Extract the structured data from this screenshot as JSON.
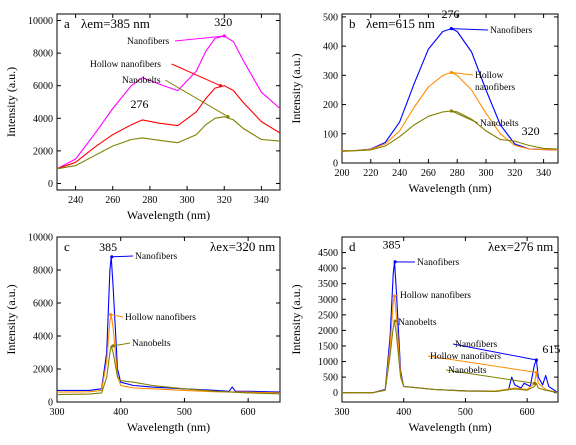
{
  "chart_data": [
    {
      "type": "line",
      "panel_label": "a",
      "condition": "λem=385 nm",
      "xlabel": "Wavelength (nm)",
      "ylabel": "Intensity (a.u.)",
      "xlim": [
        230,
        350
      ],
      "ylim": [
        -400,
        10400
      ],
      "xticks": [
        240,
        260,
        280,
        300,
        320,
        340
      ],
      "yticks": [
        0,
        2000,
        4000,
        6000,
        8000,
        10000
      ],
      "peak_labels": [
        {
          "text": "276",
          "x": 276,
          "y": 4400
        },
        {
          "text": "320",
          "x": 320,
          "y": 9300
        }
      ],
      "series": [
        {
          "name": "Nanofibers",
          "color": "#ff00ff",
          "x": [
            230,
            240,
            250,
            260,
            270,
            276,
            285,
            295,
            305,
            310,
            315,
            320,
            325,
            330,
            340,
            350
          ],
          "y": [
            900,
            1500,
            3000,
            4600,
            6000,
            6500,
            6100,
            5700,
            6900,
            8100,
            8900,
            9050,
            8700,
            7600,
            5600,
            4600
          ]
        },
        {
          "name": "Hollow nanofibers",
          "color": "#ff0000",
          "x": [
            230,
            240,
            250,
            260,
            270,
            276,
            285,
            295,
            305,
            310,
            315,
            320,
            325,
            330,
            340,
            350
          ],
          "y": [
            900,
            1300,
            2200,
            3000,
            3600,
            3900,
            3700,
            3550,
            4400,
            5200,
            5850,
            6000,
            5700,
            5000,
            3800,
            3100
          ]
        },
        {
          "name": "Nanobelts",
          "color": "#808000",
          "x": [
            230,
            240,
            250,
            260,
            270,
            276,
            285,
            295,
            305,
            310,
            315,
            320,
            325,
            330,
            340,
            350
          ],
          "y": [
            900,
            1100,
            1700,
            2300,
            2700,
            2800,
            2650,
            2500,
            3000,
            3600,
            4000,
            4100,
            3900,
            3400,
            2700,
            2600
          ]
        }
      ],
      "annotations": [
        {
          "text": "Nanofibers",
          "series": "Nanofibers",
          "x": 320,
          "y": 9050
        },
        {
          "text": "Hollow nanofibers",
          "series": "Hollow nanofibers",
          "x": 318,
          "y": 6000
        },
        {
          "text": "Nanobelts",
          "series": "Nanobelts",
          "x": 322,
          "y": 4100
        }
      ]
    },
    {
      "type": "line",
      "panel_label": "b",
      "condition": "λem=615 nm",
      "xlabel": "Wavelength (nm)",
      "ylabel": "Intensity (a.u.)",
      "xlim": [
        200,
        350
      ],
      "ylim": [
        0,
        510
      ],
      "xticks": [
        200,
        220,
        240,
        260,
        280,
        300,
        320,
        340
      ],
      "yticks": [
        0,
        100,
        200,
        300,
        400,
        500
      ],
      "peak_labels": [
        {
          "text": "276",
          "x": 276,
          "y": 480
        },
        {
          "text": "320",
          "x": 322,
          "y": 95
        }
      ],
      "series": [
        {
          "name": "Nanofibers",
          "color": "#0000ff",
          "x": [
            200,
            210,
            220,
            230,
            240,
            250,
            260,
            270,
            276,
            280,
            290,
            300,
            310,
            320,
            330,
            340,
            350
          ],
          "y": [
            42,
            43,
            48,
            70,
            140,
            270,
            390,
            450,
            460,
            450,
            380,
            250,
            130,
            65,
            48,
            46,
            45
          ]
        },
        {
          "name": "Hollow nanofibers",
          "color": "#ff8c00",
          "x": [
            200,
            210,
            220,
            230,
            240,
            250,
            260,
            270,
            276,
            280,
            290,
            300,
            310,
            320,
            330,
            340,
            350
          ],
          "y": [
            42,
            43,
            47,
            65,
            110,
            190,
            260,
            300,
            310,
            300,
            250,
            170,
            100,
            60,
            48,
            46,
            45
          ]
        },
        {
          "name": "Nanobelts",
          "color": "#808000",
          "x": [
            200,
            210,
            220,
            230,
            240,
            250,
            260,
            270,
            276,
            280,
            290,
            300,
            310,
            320,
            330,
            340,
            350
          ],
          "y": [
            40,
            42,
            45,
            58,
            90,
            130,
            160,
            175,
            178,
            175,
            150,
            110,
            80,
            75,
            60,
            50,
            48
          ]
        }
      ],
      "annotations": [
        {
          "text": "Nanofibers",
          "series": "Nanofibers",
          "x": 276,
          "y": 460
        },
        {
          "text": "Hollow\nnanofibers",
          "series": "Hollow nanofibers",
          "x": 276,
          "y": 310
        },
        {
          "text": "Nanobelts",
          "series": "Nanobelts",
          "x": 276,
          "y": 178
        }
      ]
    },
    {
      "type": "line",
      "panel_label": "c",
      "condition": "λex=320 nm",
      "xlabel": "Wavelength (nm)",
      "ylabel": "Intensity (a.u.)",
      "xlim": [
        300,
        650
      ],
      "ylim": [
        0,
        10000
      ],
      "xticks": [
        300,
        400,
        500,
        600
      ],
      "yticks": [
        0,
        2000,
        4000,
        6000,
        8000,
        10000
      ],
      "peak_labels": [
        {
          "text": "385",
          "x": 385,
          "y": 8900
        }
      ],
      "series": [
        {
          "name": "Nanofibers",
          "color": "#0000ff",
          "x": [
            300,
            350,
            370,
            378,
            383,
            385,
            388,
            395,
            400,
            420,
            450,
            500,
            550,
            570,
            575,
            580,
            600,
            650
          ],
          "y": [
            700,
            700,
            800,
            3000,
            8000,
            8800,
            7000,
            2000,
            1200,
            1000,
            900,
            800,
            700,
            650,
            900,
            650,
            650,
            600
          ]
        },
        {
          "name": "Hollow nanofibers",
          "color": "#ff8c00",
          "x": [
            300,
            350,
            370,
            378,
            383,
            385,
            388,
            395,
            400,
            420,
            450,
            500,
            550,
            600,
            650
          ],
          "y": [
            600,
            620,
            700,
            2500,
            4900,
            5300,
            4500,
            1600,
            1000,
            850,
            800,
            700,
            620,
            600,
            550
          ]
        },
        {
          "name": "Nanobelts",
          "color": "#808000",
          "x": [
            300,
            350,
            370,
            378,
            383,
            385,
            388,
            395,
            400,
            420,
            450,
            500,
            550,
            600,
            650
          ],
          "y": [
            450,
            480,
            550,
            1500,
            3000,
            3400,
            3000,
            1500,
            1300,
            1200,
            1000,
            800,
            650,
            550,
            500
          ]
        }
      ],
      "annotations": [
        {
          "text": "Nanofibers",
          "series": "Nanofibers",
          "x": 386,
          "y": 8800
        },
        {
          "text": "Hollow nanofibers",
          "series": "Hollow nanofibers",
          "x": 384,
          "y": 5300
        },
        {
          "text": "Nanobelts",
          "series": "Nanobelts",
          "x": 388,
          "y": 3400
        }
      ]
    },
    {
      "type": "line",
      "panel_label": "d",
      "condition": "λex=276 nm",
      "xlabel": "Wavelength (nm)",
      "ylabel": "Intensity (a.u.)",
      "xlim": [
        300,
        650
      ],
      "ylim": [
        -300,
        5000
      ],
      "xticks": [
        300,
        400,
        500,
        600
      ],
      "yticks": [
        0,
        500,
        1000,
        1500,
        2000,
        2500,
        3000,
        3500,
        4000,
        4500
      ],
      "peak_labels": [
        {
          "text": "385",
          "x": 385,
          "y": 4500
        },
        {
          "text": "615",
          "x": 615,
          "y": 1400
        }
      ],
      "series": [
        {
          "name": "Nanofibers",
          "color": "#0000ff",
          "x": [
            300,
            350,
            370,
            378,
            383,
            385,
            388,
            395,
            400,
            450,
            500,
            550,
            570,
            575,
            580,
            590,
            595,
            605,
            612,
            615,
            618,
            625,
            630,
            635,
            650
          ],
          "y": [
            0,
            0,
            100,
            1800,
            3800,
            4200,
            3300,
            700,
            200,
            100,
            60,
            50,
            100,
            500,
            250,
            150,
            300,
            200,
            900,
            1050,
            500,
            250,
            550,
            200,
            0
          ]
        },
        {
          "name": "Hollow nanofibers",
          "color": "#ff8c00",
          "x": [
            300,
            350,
            370,
            378,
            383,
            385,
            388,
            395,
            400,
            450,
            500,
            550,
            580,
            600,
            612,
            615,
            618,
            630,
            650
          ],
          "y": [
            0,
            0,
            80,
            1500,
            2900,
            3100,
            2500,
            600,
            200,
            100,
            50,
            50,
            150,
            100,
            300,
            650,
            300,
            100,
            0
          ]
        },
        {
          "name": "Nanobelts",
          "color": "#808000",
          "x": [
            300,
            350,
            370,
            378,
            383,
            385,
            388,
            395,
            400,
            450,
            500,
            550,
            580,
            600,
            612,
            615,
            618,
            630,
            650
          ],
          "y": [
            0,
            0,
            80,
            1200,
            2100,
            2300,
            1900,
            500,
            200,
            100,
            50,
            40,
            120,
            80,
            200,
            300,
            150,
            80,
            0
          ]
        }
      ],
      "annotations": [
        {
          "text": "Nanofibers",
          "series": "Nanofibers",
          "x": 386,
          "y": 4200
        },
        {
          "text": "Hollow nanofibers",
          "series": "Hollow nanofibers",
          "x": 385,
          "y": 3100
        },
        {
          "text": "Nanobelts",
          "series": "Nanobelts",
          "x": 386,
          "y": 2300
        },
        {
          "text": "Nanofibers",
          "series": "Nanofibers",
          "x": 615,
          "y": 1050
        },
        {
          "text": "Hollow nanofibers",
          "series": "Hollow nanofibers",
          "x": 615,
          "y": 650
        },
        {
          "text": "Nanobelts",
          "series": "Nanobelts",
          "x": 612,
          "y": 300
        }
      ]
    }
  ]
}
